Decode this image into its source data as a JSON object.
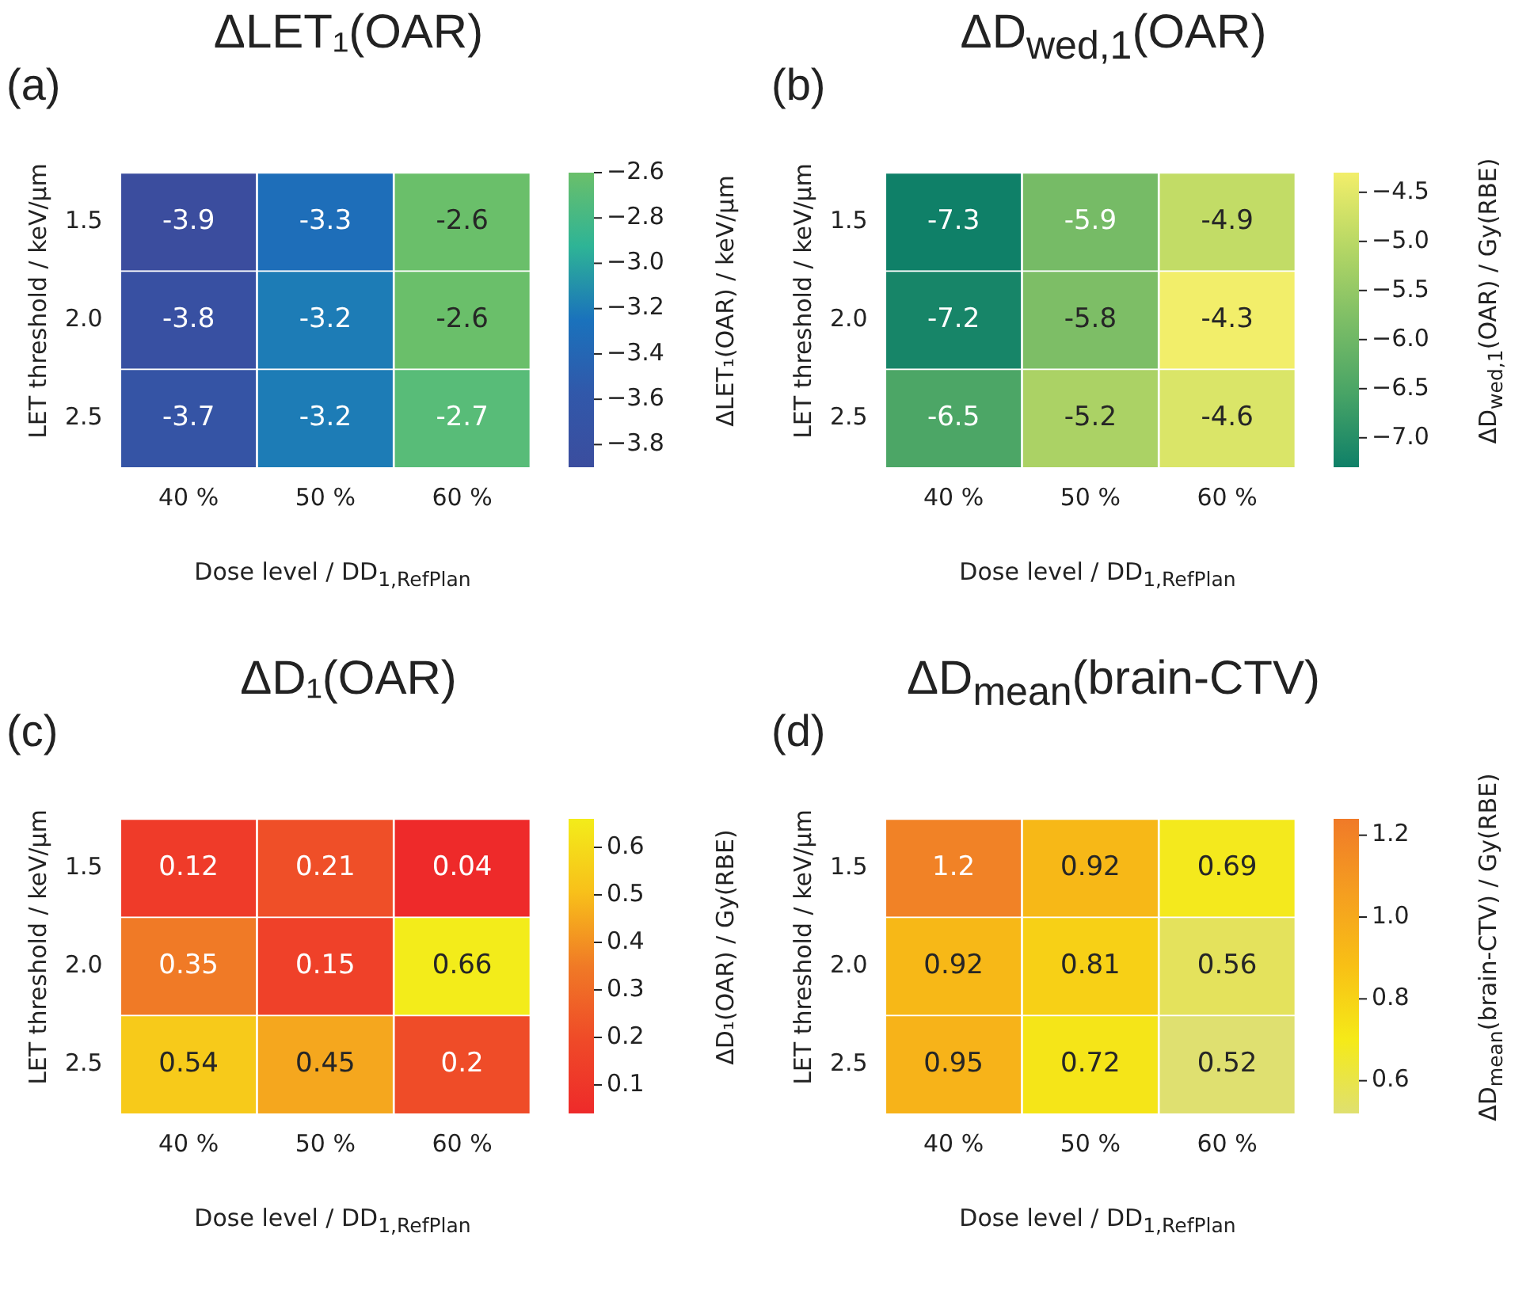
{
  "chart_data": [
    {
      "type": "heatmap",
      "title": "ΔLET₁(OAR)",
      "xlabel": "Dose level / DD$_{1,RefPlan}$",
      "ylabel": "LET threshold / keV/µm",
      "clabel": "ΔLET₁(OAR) / keV/µm",
      "annotations": [
        "(a)"
      ],
      "categories": [
        "40 %",
        "50 %",
        "60 %"
      ],
      "y_categories": [
        "1.5",
        "2.0",
        "2.5"
      ],
      "cells": [
        [
          -3.9,
          -3.3,
          -2.6
        ],
        [
          -3.8,
          -3.2,
          -2.6
        ],
        [
          -3.7,
          -3.2,
          -2.7
        ]
      ],
      "data_labels": true,
      "clim": [
        -3.9,
        -2.6
      ],
      "cticks": [
        {
          "value": -3.8,
          "label": "−3.8"
        },
        {
          "value": -3.6,
          "label": "−3.6"
        },
        {
          "value": -3.4,
          "label": "−3.4"
        },
        {
          "value": -3.2,
          "label": "−3.2"
        },
        {
          "value": -3.0,
          "label": "−3.0"
        },
        {
          "value": -2.8,
          "label": "−2.8"
        },
        {
          "value": -2.6,
          "label": "−2.6"
        }
      ],
      "colors": [
        "#3b4d9e",
        "#3158aa",
        "#1a72bc",
        "#2eb496",
        "#6abf6a"
      ]
    },
    {
      "type": "heatmap",
      "title": "ΔD$_{wed,1}$(OAR)",
      "xlabel": "Dose level / DD$_{1,RefPlan}$",
      "ylabel": "LET threshold / keV/µm",
      "clabel": "ΔD$_{wed,1}$(OAR) / Gy(RBE)",
      "annotations": [
        "(b)"
      ],
      "categories": [
        "40 %",
        "50 %",
        "60 %"
      ],
      "y_categories": [
        "1.5",
        "2.0",
        "2.5"
      ],
      "cells": [
        [
          -7.3,
          -5.9,
          -4.9
        ],
        [
          -7.2,
          -5.8,
          -4.3
        ],
        [
          -6.5,
          -5.2,
          -4.6
        ]
      ],
      "data_labels": true,
      "clim": [
        -7.3,
        -4.3
      ],
      "cticks": [
        {
          "value": -7.0,
          "label": "−7.0"
        },
        {
          "value": -6.5,
          "label": "−6.5"
        },
        {
          "value": -6.0,
          "label": "−6.0"
        },
        {
          "value": -5.5,
          "label": "−5.5"
        },
        {
          "value": -5.0,
          "label": "−5.0"
        },
        {
          "value": -4.5,
          "label": "−4.5"
        }
      ],
      "colors": [
        "#0f8068",
        "#48a466",
        "#7dbe66",
        "#b6d765",
        "#f2ee6a"
      ]
    },
    {
      "type": "heatmap",
      "title": "ΔD₁(OAR)",
      "xlabel": "Dose level / DD$_{1,RefPlan}$",
      "ylabel": "LET threshold / keV/µm",
      "clabel": "ΔD₁(OAR) / Gy(RBE)",
      "annotations": [
        "(c)"
      ],
      "categories": [
        "40 %",
        "50 %",
        "60 %"
      ],
      "y_categories": [
        "1.5",
        "2.0",
        "2.5"
      ],
      "cells": [
        [
          0.12,
          0.21,
          0.04
        ],
        [
          0.35,
          0.15,
          0.66
        ],
        [
          0.54,
          0.45,
          0.2
        ]
      ],
      "data_labels": true,
      "clim": [
        0.04,
        0.66
      ],
      "cticks": [
        0.1,
        0.2,
        0.3,
        0.4,
        0.5,
        0.6
      ],
      "colors": [
        "#ee2a2a",
        "#ef4a28",
        "#f07a26",
        "#f8c01a",
        "#f3ec1a"
      ]
    },
    {
      "type": "heatmap",
      "title": "ΔD$_{mean}$(brain-CTV)",
      "xlabel": "Dose level / DD$_{1,RefPlan}$",
      "ylabel": "LET threshold / keV/µm",
      "clabel": "ΔD$_{mean}$(brain-CTV) / Gy(RBE)",
      "annotations": [
        "(d)"
      ],
      "categories": [
        "40 %",
        "50 %",
        "60 %"
      ],
      "y_categories": [
        "1.5",
        "2.0",
        "2.5"
      ],
      "cells": [
        [
          1.2,
          0.92,
          0.69
        ],
        [
          0.92,
          0.81,
          0.56
        ],
        [
          0.95,
          0.72,
          0.52
        ]
      ],
      "data_labels": true,
      "clim": [
        0.52,
        1.24
      ],
      "cticks": [
        0.6,
        0.8,
        {
          "value": 1.0,
          "label": "1.0"
        },
        1.2
      ],
      "colors": [
        "#dfe070",
        "#f5ea18",
        "#f8c015",
        "#f59e20",
        "#f07a28"
      ]
    }
  ]
}
